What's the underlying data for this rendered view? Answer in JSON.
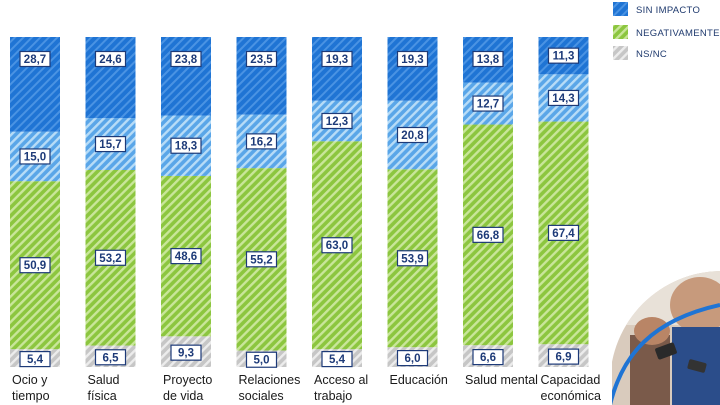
{
  "chart_data": {
    "type": "bar",
    "stacked": true,
    "percent_stacked": true,
    "categories": [
      [
        "Ocio y",
        "tiempo"
      ],
      [
        "Salud",
        "física"
      ],
      [
        "Proyecto",
        "de vida"
      ],
      [
        "Relaciones",
        "sociales"
      ],
      [
        "Acceso al",
        "trabajo"
      ],
      [
        "Educación"
      ],
      [
        "Salud mental"
      ],
      [
        "Capacidad",
        "económica"
      ]
    ],
    "series": [
      {
        "name": "NS/NC",
        "values": [
          5.4,
          6.5,
          9.3,
          5.0,
          5.4,
          6.0,
          6.6,
          6.9
        ]
      },
      {
        "name": "NEGATIVAMENTE",
        "values": [
          50.9,
          53.2,
          48.6,
          55.2,
          63.0,
          53.9,
          66.8,
          67.4
        ]
      },
      {
        "name": "",
        "values": [
          15.0,
          15.7,
          18.3,
          16.2,
          12.3,
          20.8,
          12.7,
          14.3
        ]
      },
      {
        "name": "SIN IMPACTO",
        "values": [
          28.7,
          24.6,
          23.8,
          23.5,
          19.3,
          19.3,
          13.8,
          11.3
        ]
      }
    ],
    "legend": {
      "placement": "top-right",
      "entries": [
        "SIN IMPACTO",
        "NEGATIVAMENTE",
        "NS/NC"
      ]
    },
    "colors": {
      "sin_impacto": "#1f74d4",
      "segment_light_blue": "#6fb3ea",
      "negativamente": "#8cc63f",
      "nsnc": "#c8c8c8",
      "label_border": "#1d3a78"
    },
    "ylim": [
      0,
      100
    ]
  }
}
